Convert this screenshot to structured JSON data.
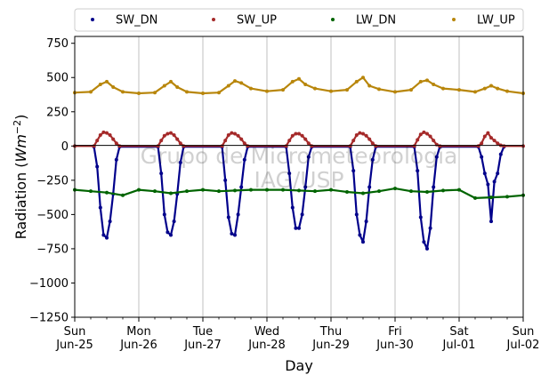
{
  "chart_data": {
    "type": "scatter",
    "xlabel": "Day",
    "ylabel_main": "Radiation (",
    "ylabel_unit": "Wm",
    "ylabel_exp": "−2",
    "ylabel_close": ")",
    "ylim": [
      -1250,
      800
    ],
    "yticks": [
      -1250,
      -1000,
      -750,
      -500,
      -250,
      0,
      250,
      500,
      750
    ],
    "ytick_labels": [
      "−1250",
      "−1000",
      "−750",
      "−500",
      "−250",
      "0",
      "250",
      "500",
      "750"
    ],
    "xlim": [
      0,
      7
    ],
    "xticks": [
      {
        "day": 0,
        "weekday": "Sun",
        "date": "Jun-25"
      },
      {
        "day": 1,
        "weekday": "Mon",
        "date": "Jun-26"
      },
      {
        "day": 2,
        "weekday": "Tue",
        "date": "Jun-27"
      },
      {
        "day": 3,
        "weekday": "Wed",
        "date": "Jun-28"
      },
      {
        "day": 4,
        "weekday": "Thu",
        "date": "Jun-29"
      },
      {
        "day": 5,
        "weekday": "Fri",
        "date": "Jun-30"
      },
      {
        "day": 6,
        "weekday": "Sat",
        "date": "Jul-01"
      },
      {
        "day": 7,
        "weekday": "Sun",
        "date": "Jul-02"
      }
    ],
    "grid": "vertical",
    "legend_position": "top",
    "watermark": [
      "Grupo de Micrometeorologia",
      "IAG/USP"
    ],
    "series": [
      {
        "name": "SW_DN",
        "color": "#00008b",
        "x": [
          0.3,
          0.35,
          0.4,
          0.45,
          0.5,
          0.55,
          0.6,
          0.65,
          0.7,
          1.3,
          1.35,
          1.4,
          1.45,
          1.5,
          1.55,
          1.6,
          1.65,
          1.7,
          2.3,
          2.35,
          2.4,
          2.45,
          2.5,
          2.55,
          2.6,
          2.65,
          2.7,
          3.3,
          3.35,
          3.4,
          3.45,
          3.5,
          3.55,
          3.6,
          3.65,
          3.7,
          4.3,
          4.35,
          4.4,
          4.45,
          4.5,
          4.55,
          4.6,
          4.65,
          4.7,
          5.3,
          5.35,
          5.4,
          5.45,
          5.5,
          5.55,
          5.6,
          5.65,
          5.7,
          6.3,
          6.35,
          6.4,
          6.45,
          6.5,
          6.55,
          6.6,
          6.65,
          6.7
        ],
        "y": [
          -5,
          -150,
          -450,
          -650,
          -670,
          -550,
          -350,
          -100,
          -5,
          -5,
          -200,
          -500,
          -630,
          -650,
          -550,
          -350,
          -120,
          -5,
          -5,
          -250,
          -520,
          -640,
          -650,
          -500,
          -300,
          -100,
          -5,
          -5,
          -200,
          -450,
          -600,
          -600,
          -500,
          -300,
          -80,
          -5,
          -5,
          -180,
          -500,
          -650,
          -700,
          -550,
          -300,
          -100,
          -5,
          -5,
          -180,
          -520,
          -700,
          -750,
          -600,
          -300,
          -80,
          -5,
          -5,
          -80,
          -200,
          -280,
          -550,
          -260,
          -200,
          -60,
          -5
        ]
      },
      {
        "name": "SW_UP",
        "color": "#a52a2a",
        "x": [
          0.0,
          0.3,
          0.35,
          0.4,
          0.45,
          0.5,
          0.55,
          0.6,
          0.65,
          0.7,
          1.3,
          1.35,
          1.4,
          1.45,
          1.5,
          1.55,
          1.6,
          1.65,
          1.7,
          2.3,
          2.35,
          2.4,
          2.45,
          2.5,
          2.55,
          2.6,
          2.65,
          2.7,
          3.3,
          3.35,
          3.4,
          3.45,
          3.5,
          3.55,
          3.6,
          3.65,
          3.7,
          4.3,
          4.35,
          4.4,
          4.45,
          4.5,
          4.55,
          4.6,
          4.65,
          4.7,
          5.3,
          5.35,
          5.4,
          5.45,
          5.5,
          5.55,
          5.6,
          5.65,
          5.7,
          6.3,
          6.35,
          6.4,
          6.45,
          6.5,
          6.55,
          6.6,
          6.65,
          6.7,
          7.0
        ],
        "y": [
          0,
          0,
          40,
          80,
          100,
          95,
          80,
          50,
          20,
          0,
          0,
          40,
          75,
          90,
          95,
          80,
          50,
          20,
          0,
          0,
          40,
          80,
          95,
          90,
          75,
          50,
          20,
          0,
          0,
          40,
          75,
          90,
          90,
          75,
          50,
          20,
          0,
          0,
          40,
          80,
          95,
          90,
          75,
          50,
          20,
          0,
          0,
          45,
          85,
          100,
          90,
          70,
          40,
          10,
          0,
          0,
          20,
          70,
          95,
          60,
          40,
          20,
          5,
          0,
          0
        ]
      },
      {
        "name": "LW_DN",
        "color": "#006400",
        "x": [
          0.0,
          0.25,
          0.5,
          0.75,
          1.0,
          1.25,
          1.5,
          1.75,
          2.0,
          2.25,
          2.5,
          2.75,
          3.0,
          3.25,
          3.5,
          3.75,
          4.0,
          4.25,
          4.5,
          4.75,
          5.0,
          5.25,
          5.5,
          5.75,
          6.0,
          6.25,
          6.5,
          6.75,
          7.0
        ],
        "y": [
          -320,
          -330,
          -340,
          -360,
          -320,
          -330,
          -345,
          -330,
          -320,
          -330,
          -325,
          -320,
          -320,
          -320,
          -325,
          -330,
          -320,
          -335,
          -345,
          -330,
          -310,
          -330,
          -335,
          -325,
          -320,
          -380,
          -375,
          -370,
          -360
        ]
      },
      {
        "name": "LW_UP",
        "color": "#b8860b",
        "x": [
          0.0,
          0.25,
          0.4,
          0.5,
          0.6,
          0.75,
          1.0,
          1.25,
          1.4,
          1.5,
          1.6,
          1.75,
          2.0,
          2.25,
          2.4,
          2.5,
          2.6,
          2.75,
          3.0,
          3.25,
          3.4,
          3.5,
          3.6,
          3.75,
          4.0,
          4.25,
          4.4,
          4.5,
          4.6,
          4.75,
          5.0,
          5.25,
          5.4,
          5.5,
          5.6,
          5.75,
          6.0,
          6.25,
          6.4,
          6.5,
          6.6,
          6.75,
          7.0
        ],
        "y": [
          390,
          395,
          450,
          470,
          430,
          395,
          385,
          390,
          440,
          470,
          430,
          395,
          385,
          390,
          440,
          475,
          460,
          420,
          400,
          410,
          470,
          490,
          450,
          420,
          400,
          410,
          470,
          500,
          440,
          415,
          395,
          410,
          470,
          480,
          450,
          420,
          410,
          395,
          420,
          440,
          420,
          400,
          385
        ]
      }
    ]
  }
}
